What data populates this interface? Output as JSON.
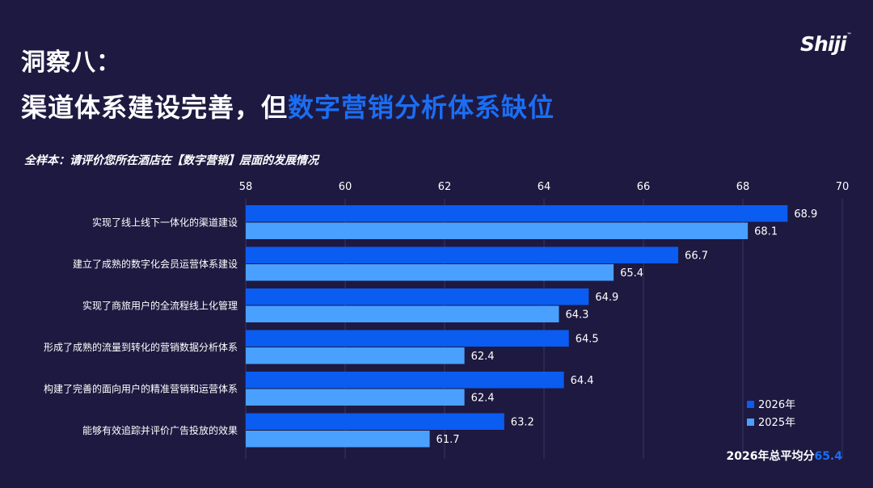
{
  "header": {
    "title_line1": "洞察八：",
    "title_line2_prefix": "渠道体系建设完善，但",
    "title_line2_highlight": "数字营销分析体系缺位",
    "logo": "Shiji",
    "subtitle": "全样本：请评价您所在酒店在【数字营销】层面的发展情况"
  },
  "colors": {
    "series_2026": "#0b5cf0",
    "series_2025": "#4aa0ff",
    "highlight": "#1b6ef3",
    "gridline": "#3a3560"
  },
  "chart_data": {
    "type": "bar",
    "orientation": "horizontal",
    "categories": [
      "实现了线上线下一体化的渠道建设",
      "建立了成熟的数字化会员运营体系建设",
      "实现了商旅用户的全流程线上化管理",
      "形成了成熟的流量到转化的营销数据分析体系",
      "构建了完善的面向用户的精准营销和运营体系",
      "能够有效追踪并评价广告投放的效果"
    ],
    "series": [
      {
        "name": "2026年",
        "values": [
          68.9,
          66.7,
          64.9,
          64.5,
          64.4,
          63.2
        ]
      },
      {
        "name": "2025年",
        "values": [
          68.1,
          65.4,
          64.3,
          62.4,
          62.4,
          61.7
        ]
      }
    ],
    "xlim": [
      58,
      70
    ],
    "xticks": [
      58,
      60,
      62,
      64,
      66,
      68,
      70
    ],
    "grid": true,
    "legend_position": "bottom-right",
    "annotation": {
      "label": "2026年总平均分",
      "value": "65.4"
    }
  }
}
